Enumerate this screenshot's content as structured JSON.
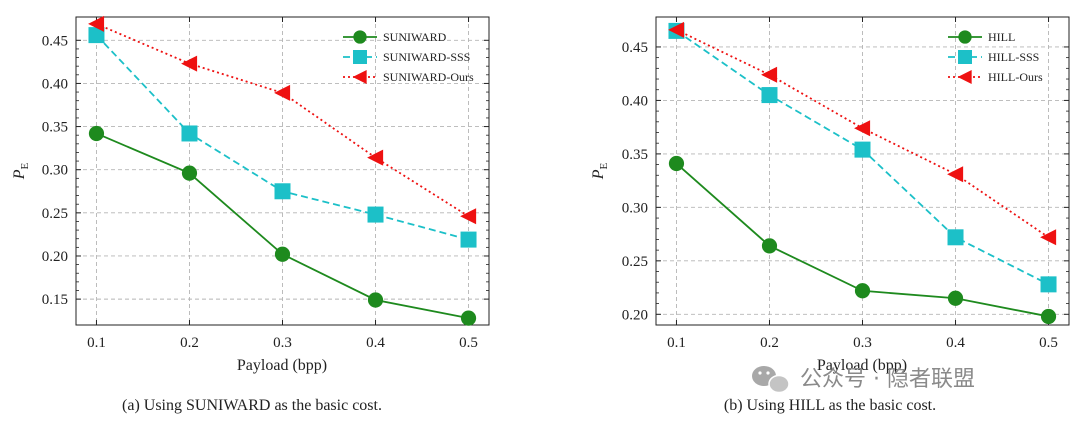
{
  "chart_data": [
    {
      "type": "line",
      "caption": "(a) Using SUNIWARD as the basic cost.",
      "xlabel": "Payload (bpp)",
      "ylabel_main": "P",
      "ylabel_sub": "E",
      "x": [
        0.1,
        0.2,
        0.3,
        0.4,
        0.5
      ],
      "x_ticks": [
        "0.1",
        "0.2",
        "0.3",
        "0.4",
        "0.5"
      ],
      "y_ticks": [
        "0.15",
        "0.20",
        "0.25",
        "0.30",
        "0.35",
        "0.40",
        "0.45"
      ],
      "ylim": [
        0.12,
        0.477
      ],
      "grid": true,
      "legend_position": "top-right",
      "series": [
        {
          "name": "SUNIWARD",
          "values": [
            0.342,
            0.296,
            0.202,
            0.149,
            0.128
          ],
          "color": "#1e8a1e",
          "marker": "circle",
          "dash": "solid"
        },
        {
          "name": "SUNIWARD-SSS",
          "values": [
            0.456,
            0.342,
            0.275,
            0.248,
            0.219
          ],
          "color": "#1cc0c8",
          "marker": "square",
          "dash": "dashed"
        },
        {
          "name": "SUNIWARD-Ours",
          "values": [
            0.469,
            0.423,
            0.389,
            0.314,
            0.246
          ],
          "color": "#ee1111",
          "marker": "triangle-left",
          "dash": "dotted"
        }
      ]
    },
    {
      "type": "line",
      "caption": "(b) Using HILL as the basic cost.",
      "xlabel": "Payload (bpp)",
      "ylabel_main": "P",
      "ylabel_sub": "E",
      "x": [
        0.1,
        0.2,
        0.3,
        0.4,
        0.5
      ],
      "x_ticks": [
        "0.1",
        "0.2",
        "0.3",
        "0.4",
        "0.5"
      ],
      "y_ticks": [
        "0.20",
        "0.25",
        "0.30",
        "0.35",
        "0.40",
        "0.45"
      ],
      "ylim": [
        0.19,
        0.478
      ],
      "grid": true,
      "legend_position": "top-right",
      "series": [
        {
          "name": "HILL",
          "values": [
            0.341,
            0.264,
            0.222,
            0.215,
            0.198
          ],
          "color": "#1e8a1e",
          "marker": "circle",
          "dash": "solid"
        },
        {
          "name": "HILL-SSS",
          "values": [
            0.465,
            0.405,
            0.354,
            0.272,
            0.228
          ],
          "color": "#1cc0c8",
          "marker": "square",
          "dash": "dashed"
        },
        {
          "name": "HILL-Ours",
          "values": [
            0.466,
            0.424,
            0.374,
            0.331,
            0.272
          ],
          "color": "#ee1111",
          "marker": "triangle-left",
          "dash": "dotted"
        }
      ]
    }
  ],
  "watermark": "公众号 · 隐者联盟",
  "watermark_icon": "wechat-icon"
}
